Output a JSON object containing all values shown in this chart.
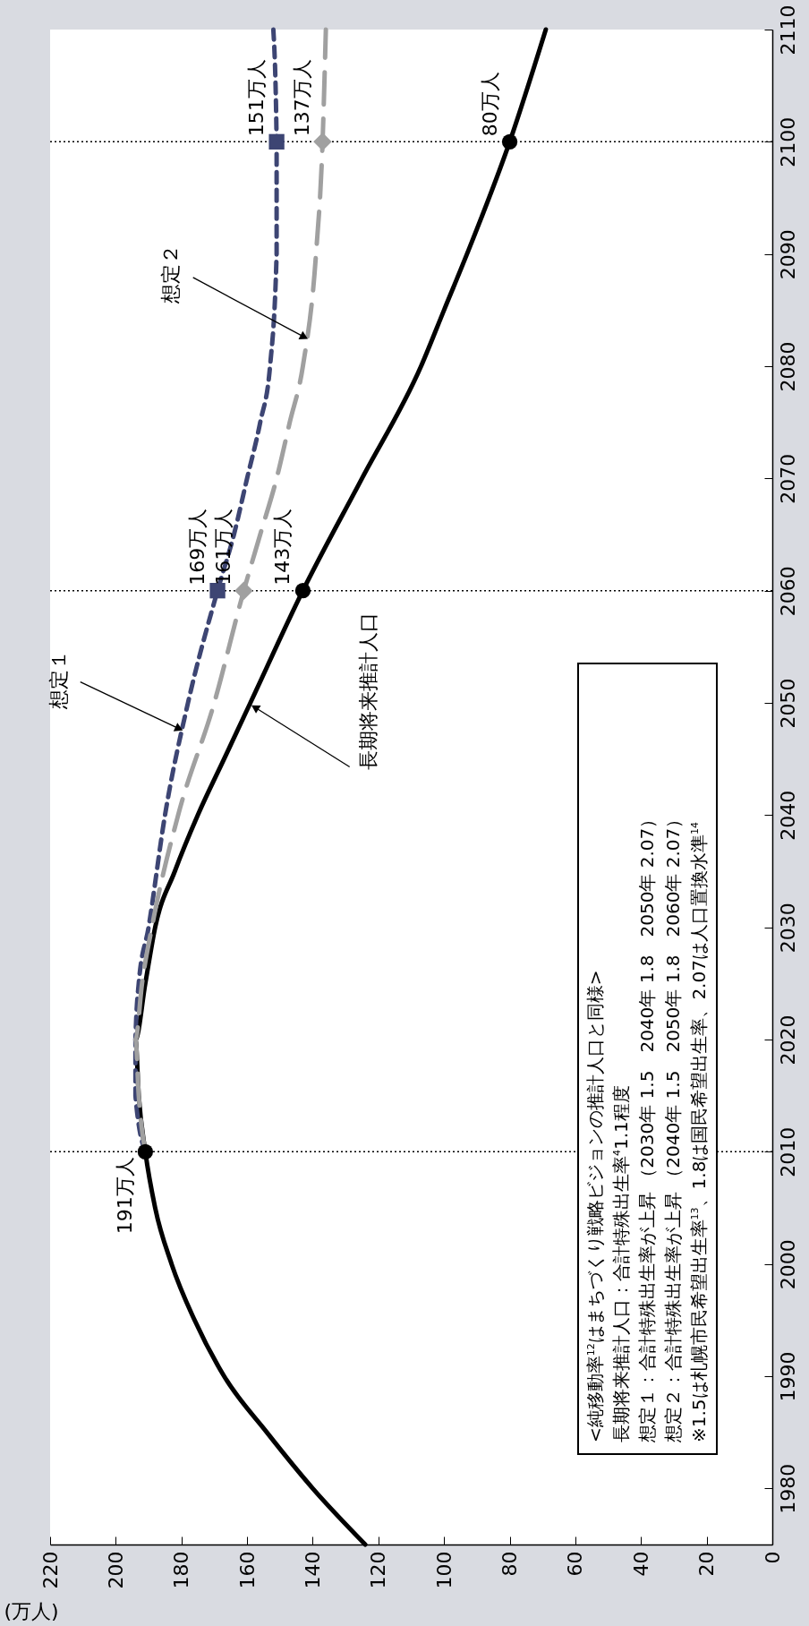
{
  "chart_data": {
    "type": "line",
    "xlabel": "(万人)",
    "xlim": [
      220,
      0
    ],
    "xticks": [
      220,
      200,
      180,
      160,
      140,
      120,
      100,
      80,
      60,
      40,
      20,
      0
    ],
    "ylim": [
      1975,
      2110
    ],
    "yticks": [
      1980,
      1990,
      2000,
      2010,
      2020,
      2030,
      2040,
      2050,
      2060,
      2070,
      2080,
      2090,
      2100,
      2110
    ],
    "grid": false,
    "series": [
      {
        "color": "#000000",
        "line_style": "solid",
        "values": [
          1975,
          1980,
          1985,
          1990,
          1995,
          2000,
          2005,
          2010,
          2015,
          2020,
          2025,
          2030,
          2035,
          2040,
          2045,
          2050,
          2060,
          2070,
          2080,
          2085,
          2090,
          2100,
          2110
        ],
        "x": [
          124,
          140,
          154,
          167,
          176,
          183,
          188,
          191,
          193,
          194,
          191,
          188,
          182,
          175,
          167,
          159,
          143,
          125,
          107,
          100,
          93,
          80,
          69
        ]
      },
      {
        "color": "#3d4573",
        "line_style": "dashed",
        "values": [
          2010,
          2015,
          2020,
          2025,
          2030,
          2040,
          2050,
          2060,
          2065,
          2070,
          2075,
          2080,
          2090,
          2100,
          2110
        ],
        "x": [
          191,
          194,
          194,
          193,
          190,
          185,
          178,
          169,
          164,
          160,
          156,
          153,
          151,
          151,
          152
        ]
      },
      {
        "color": "#a0a0a0",
        "line_style": "dashed",
        "values": [
          2010,
          2015,
          2020,
          2025,
          2030,
          2040,
          2050,
          2060,
          2065,
          2070,
          2075,
          2080,
          2090,
          2100,
          2110
        ],
        "x": [
          191,
          193,
          194,
          192,
          189,
          181,
          170,
          161,
          156,
          151,
          147,
          143,
          139,
          137,
          136
        ]
      },
      {
        "type": "scatter",
        "color": "#000000",
        "marker": "circle",
        "values": [
          2010,
          2060,
          2100
        ],
        "x": [
          191,
          143,
          80
        ]
      },
      {
        "type": "scatter",
        "color": "#3d4573",
        "marker": "square",
        "values": [
          2060,
          2100
        ],
        "x": [
          169,
          151
        ]
      },
      {
        "type": "scatter",
        "color": "#a0a0a0",
        "marker": "diamond",
        "values": [
          2060,
          2100
        ],
        "x": [
          161,
          137
        ]
      }
    ],
    "ref_lines": [
      {
        "axis": "y",
        "value": 2010,
        "line_style": "dotted"
      },
      {
        "axis": "y",
        "value": 2060,
        "line_style": "dotted"
      },
      {
        "axis": "y",
        "value": 2100,
        "line_style": "dotted"
      }
    ],
    "annotations": [
      {
        "text": "191万人",
        "x": 191,
        "y": 2010
      },
      {
        "text": "143万人",
        "x": 143,
        "y": 2060
      },
      {
        "text": "80万人",
        "x": 80,
        "y": 2100
      },
      {
        "text": "169万人",
        "x": 169,
        "y": 2060
      },
      {
        "text": "151万人",
        "x": 151,
        "y": 2100
      },
      {
        "text": "161万人",
        "x": 161,
        "y": 2060
      },
      {
        "text": "137万人",
        "x": 137,
        "y": 2100
      },
      {
        "text": "想定１",
        "x": 180.7,
        "y": 2047.7
      },
      {
        "text": "長期将来推計人口",
        "x": 157.6,
        "y": 2049.6
      },
      {
        "text": "想定２",
        "x": 142.6,
        "y": 2082.6
      },
      "<純移動率$^{12}$はまちづくり戦略ビジョンの推計人口と同様>",
      "長期将来推計人口：合計特殊出生率$^{4}$1.1程度",
      "想定１：合計特殊出生率が上昇 （2030年 1.5　2040年 1.8　2050年 2.07）",
      "想定２：合計特殊出生率が上昇 （2040年 1.5　2050年 1.8　2060年 2.07）",
      "※1.5は札幌市民希望出生率$^{13}$、1.8は国民希望出生率、2.07は人口置換水準$^{14}$"
    ]
  }
}
